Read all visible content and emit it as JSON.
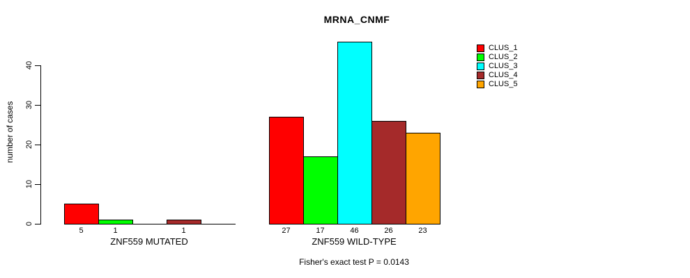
{
  "title": "MRNA_CNMF",
  "footer": "Fisher's exact test P = 0.0143",
  "chart_data": {
    "type": "bar",
    "title": "MRNA_CNMF",
    "ylabel": "number of cases",
    "xlabel": "",
    "ylim": [
      0,
      46
    ],
    "yticks": [
      0,
      10,
      20,
      30,
      40
    ],
    "grid": false,
    "legend_position": "top-right",
    "categories": [
      "ZNF559 MUTATED",
      "ZNF559 WILD-TYPE"
    ],
    "series": [
      {
        "name": "CLUS_1",
        "color": "#FF0000",
        "values": [
          5,
          27
        ]
      },
      {
        "name": "CLUS_2",
        "color": "#00FF00",
        "values": [
          1,
          17
        ]
      },
      {
        "name": "CLUS_3",
        "color": "#00FFFF",
        "values": [
          0,
          46
        ]
      },
      {
        "name": "CLUS_4",
        "color": "#A52A2A",
        "values": [
          1,
          26
        ]
      },
      {
        "name": "CLUS_5",
        "color": "#FFA500",
        "values": [
          0,
          23
        ]
      }
    ],
    "bar_value_labels": {
      "ZNF559 MUTATED": [
        5,
        1,
        0,
        1,
        0
      ],
      "ZNF559 WILD-TYPE": [
        27,
        17,
        46,
        26,
        23
      ],
      "zero_values_unlabeled": true
    },
    "annotation": "Fisher's exact test P = 0.0143"
  }
}
